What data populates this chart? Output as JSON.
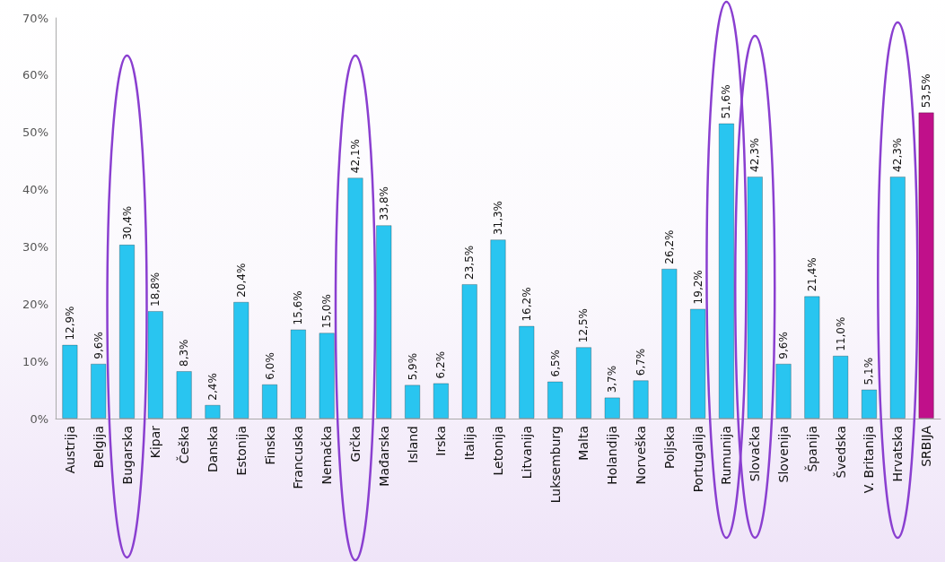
{
  "chart_data": {
    "type": "bar",
    "categories": [
      "Austrija",
      "Belgija",
      "Bugarska",
      "Kipar",
      "Češka",
      "Danska",
      "Estonija",
      "Finska",
      "Francuska",
      "Nemačka",
      "Grčka",
      "Mađarska",
      "Island",
      "Irska",
      "Italija",
      "Letonija",
      "Litvanija",
      "Luksemburg",
      "Malta",
      "Holandija",
      "Norveška",
      "Poljska",
      "Portugalija",
      "Rumunija",
      "Slovačka",
      "Slovenija",
      "Španija",
      "Švedska",
      "V. Britanija",
      "Hrvatska",
      "SRBIJA"
    ],
    "values": [
      12.9,
      9.6,
      30.4,
      18.8,
      8.3,
      2.4,
      20.4,
      6.0,
      15.6,
      15.0,
      42.1,
      33.8,
      5.9,
      6.2,
      23.5,
      31.3,
      16.2,
      6.5,
      12.5,
      3.7,
      6.7,
      26.2,
      19.2,
      51.6,
      42.3,
      9.6,
      21.4,
      11.0,
      5.1,
      42.3,
      53.5
    ],
    "value_labels": [
      "12,9%",
      "9,6%",
      "30,4%",
      "18,8%",
      "8,3%",
      "2,4%",
      "20,4%",
      "6,0%",
      "15,6%",
      "15,0%",
      "42,1%",
      "33,8%",
      "5,9%",
      "6,2%",
      "23,5%",
      "31,3%",
      "16,2%",
      "6,5%",
      "12,5%",
      "3,7%",
      "6,7%",
      "26,2%",
      "19,2%",
      "51,6%",
      "42,3%",
      "9,6%",
      "21,4%",
      "11,0%",
      "5,1%",
      "42,3%",
      "53,5%"
    ],
    "colors": [
      "#29c5f0",
      "#29c5f0",
      "#29c5f0",
      "#29c5f0",
      "#29c5f0",
      "#29c5f0",
      "#29c5f0",
      "#29c5f0",
      "#29c5f0",
      "#29c5f0",
      "#29c5f0",
      "#29c5f0",
      "#29c5f0",
      "#29c5f0",
      "#29c5f0",
      "#29c5f0",
      "#29c5f0",
      "#29c5f0",
      "#29c5f0",
      "#29c5f0",
      "#29c5f0",
      "#29c5f0",
      "#29c5f0",
      "#29c5f0",
      "#29c5f0",
      "#29c5f0",
      "#29c5f0",
      "#29c5f0",
      "#29c5f0",
      "#29c5f0",
      "#c0108a"
    ],
    "ylim": [
      0,
      70
    ],
    "yticks": [
      {
        "value": 0,
        "label": "0%"
      },
      {
        "value": 10,
        "label": "10%"
      },
      {
        "value": 20,
        "label": "20%"
      },
      {
        "value": 30,
        "label": "30%"
      },
      {
        "value": 40,
        "label": "40%"
      },
      {
        "value": 50,
        "label": "50%"
      },
      {
        "value": 60,
        "label": "60%"
      },
      {
        "value": 70,
        "label": "70%"
      }
    ],
    "tick_labels": "xy"
  }
}
